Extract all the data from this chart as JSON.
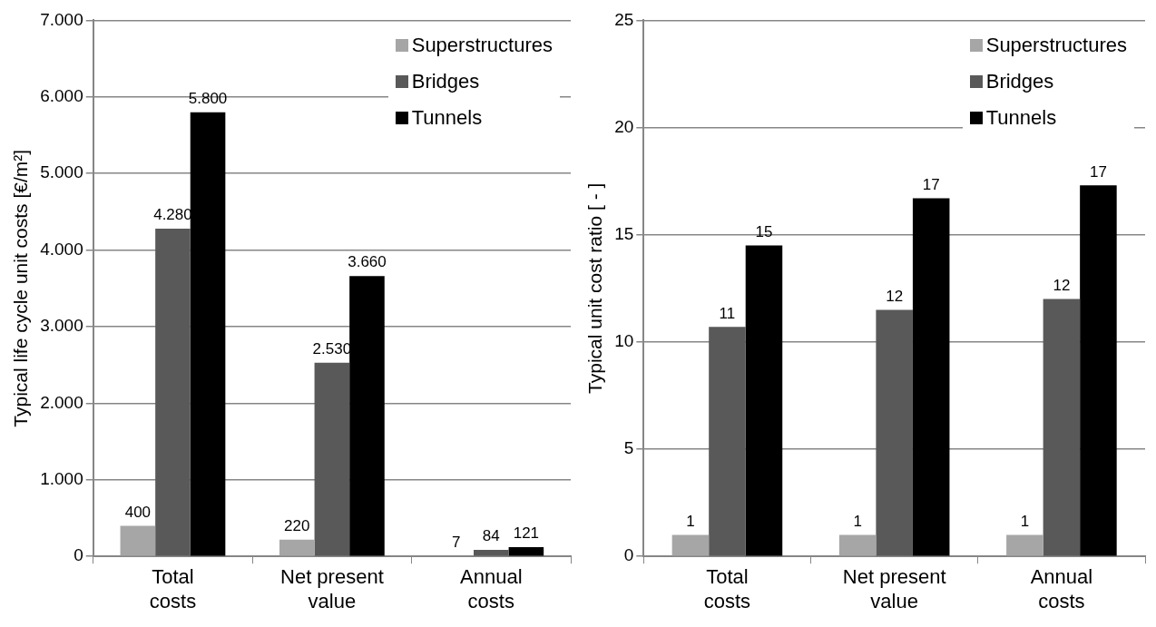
{
  "chart_data": [
    {
      "type": "bar",
      "ylabel": "Typical life cycle unit costs [€/m²]",
      "categories": [
        "Total costs",
        "Net present value",
        "Annual costs"
      ],
      "series": [
        {
          "name": "Superstructures",
          "color": "#a6a6a6",
          "values": [
            400,
            220,
            7
          ],
          "value_labels": [
            "400",
            "220",
            "7"
          ]
        },
        {
          "name": "Bridges",
          "color": "#595959",
          "values": [
            4280,
            2530,
            84
          ],
          "value_labels": [
            "4.280",
            "2.530",
            "84"
          ]
        },
        {
          "name": "Tunnels",
          "color": "#000000",
          "values": [
            5800,
            3660,
            121
          ],
          "value_labels": [
            "5.800",
            "3.660",
            "121"
          ]
        }
      ],
      "ylim": [
        0,
        7000
      ],
      "yticks": [
        {
          "value": 0,
          "label": "0"
        },
        {
          "value": 1000,
          "label": "1.000"
        },
        {
          "value": 2000,
          "label": "2.000"
        },
        {
          "value": 3000,
          "label": "3.000"
        },
        {
          "value": 4000,
          "label": "4.000"
        },
        {
          "value": 5000,
          "label": "5.000"
        },
        {
          "value": 6000,
          "label": "6.000"
        },
        {
          "value": 7000,
          "label": "7.000"
        }
      ],
      "grid": "y",
      "legend": "top right"
    },
    {
      "type": "bar",
      "ylabel": "Typical unit cost ratio [ - ]",
      "categories": [
        "Total costs",
        "Net present value",
        "Annual costs"
      ],
      "series": [
        {
          "name": "Superstructures",
          "color": "#a6a6a6",
          "values": [
            1,
            1,
            1
          ],
          "value_labels": [
            "1",
            "1",
            "1"
          ]
        },
        {
          "name": "Bridges",
          "color": "#595959",
          "values": [
            10.7,
            11.5,
            12.0
          ],
          "value_labels": [
            "11",
            "12",
            "12"
          ]
        },
        {
          "name": "Tunnels",
          "color": "#000000",
          "values": [
            14.5,
            16.7,
            17.3
          ],
          "value_labels": [
            "15",
            "17",
            "17"
          ]
        }
      ],
      "ylim": [
        0,
        25
      ],
      "yticks": [
        0,
        5,
        10,
        15,
        20,
        25
      ],
      "grid": "y",
      "legend": "top right"
    }
  ]
}
